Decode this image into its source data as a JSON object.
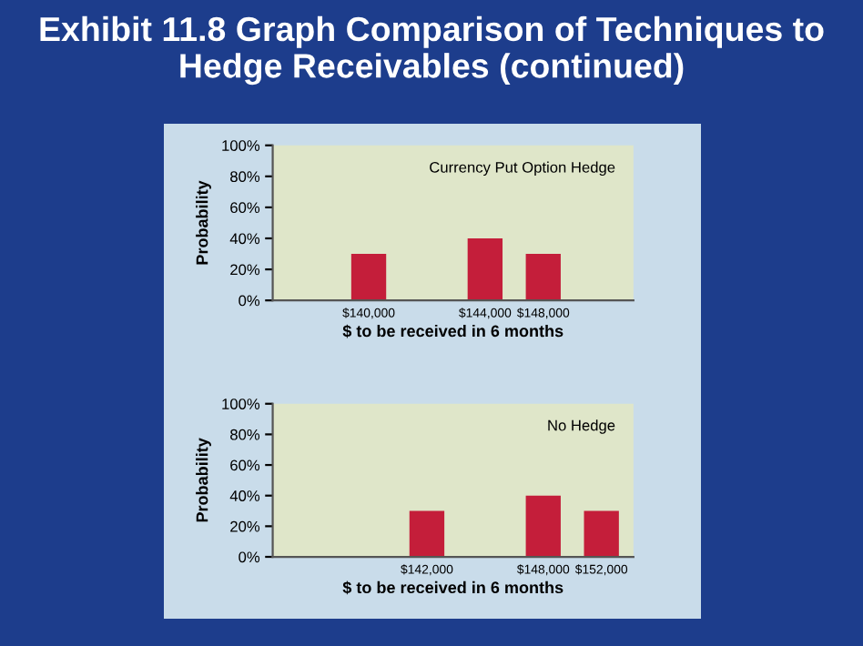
{
  "chart_data": [
    {
      "type": "bar",
      "title": "Exhibit 11.8 Graph Comparison of Techniques to Hedge Receivables (continued)",
      "xlabel": "$ to be received in 6 months",
      "ylabel": "Probability",
      "annotations": [
        "Currency Put Option Hedge"
      ],
      "categories": [
        null,
        "$140,000",
        null,
        "$144,000",
        "$148,000",
        null
      ],
      "values": [
        null,
        30,
        null,
        40,
        30,
        null
      ],
      "color": "#c41e3a",
      "ylim": [
        0,
        100
      ],
      "yticks": [
        {
          "value": 0,
          "label": "0%"
        },
        {
          "value": 20,
          "label": "20%"
        },
        {
          "value": 40,
          "label": "40%"
        },
        {
          "value": 60,
          "label": "60%"
        },
        {
          "value": 80,
          "label": "80%"
        },
        {
          "value": 100,
          "label": "100%"
        }
      ]
    },
    {
      "type": "bar",
      "xlabel": "$ to be received in 6 months",
      "ylabel": "Probability",
      "annotations": [
        "No Hedge"
      ],
      "categories": [
        null,
        null,
        "$142,000",
        null,
        "$148,000",
        "$152,000"
      ],
      "values": [
        null,
        null,
        30,
        null,
        40,
        30
      ],
      "color": "#c41e3a",
      "ylim": [
        0,
        100
      ],
      "yticks": [
        {
          "value": 0,
          "label": "0%"
        },
        {
          "value": 20,
          "label": "20%"
        },
        {
          "value": 40,
          "label": "40%"
        },
        {
          "value": 60,
          "label": "60%"
        },
        {
          "value": 80,
          "label": "80%"
        },
        {
          "value": 100,
          "label": "100%"
        }
      ]
    }
  ]
}
